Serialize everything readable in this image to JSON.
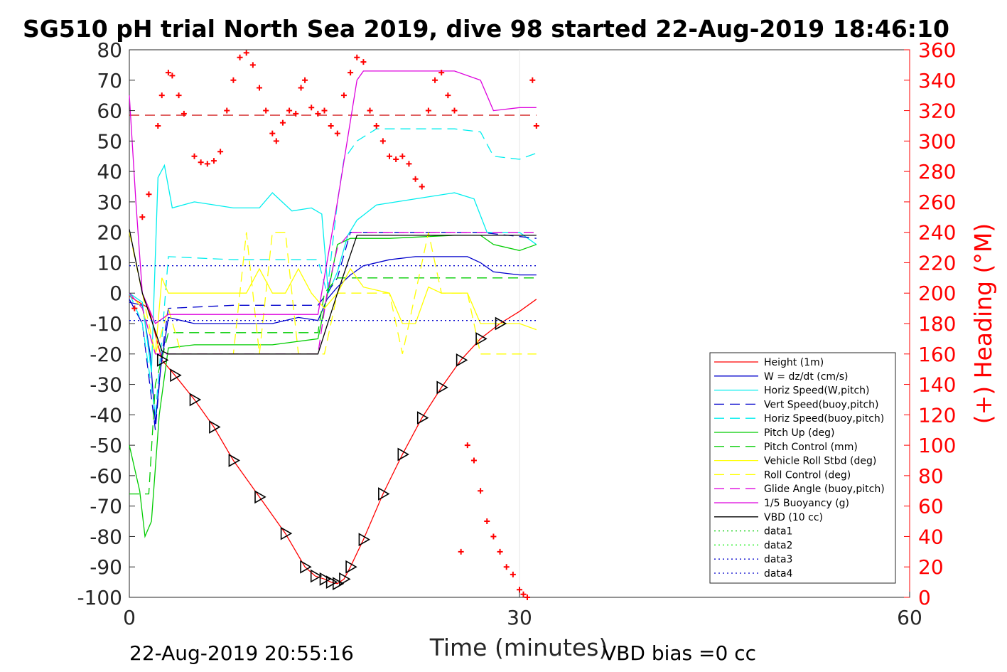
{
  "title": "SG510 pH trial North Sea 2019, dive 98 started 22-Aug-2019 18:46:10",
  "footer": {
    "end_time": "22-Aug-2019 20:55:16",
    "vbd_bias": "VBD bias =0 cc"
  },
  "chart_data": {
    "type": "line",
    "title": "SG510 pH trial North Sea 2019, dive 98 started 22-Aug-2019 18:46:10",
    "xlabel": "Time (minutes)",
    "ylabel": "",
    "y2label": "(+) Heading (°M)",
    "xlim": [
      0,
      60
    ],
    "ylim": [
      -100,
      80
    ],
    "y2lim": [
      0,
      360
    ],
    "xticks": [
      "0",
      "30",
      "60"
    ],
    "yticks": [
      "80",
      "70",
      "60",
      "50",
      "40",
      "30",
      "20",
      "10",
      "0",
      "-10",
      "-20",
      "-30",
      "-40",
      "-50",
      "-60",
      "-70",
      "-80",
      "-90",
      "-100"
    ],
    "y2ticks": [
      "360",
      "340",
      "320",
      "300",
      "280",
      "260",
      "240",
      "220",
      "200",
      "180",
      "160",
      "140",
      "120",
      "100",
      "80",
      "60",
      "40",
      "20",
      "0"
    ],
    "grid": "partial",
    "legend_position": "lower-right",
    "series": [
      {
        "name": "Height (1m)",
        "color": "#ff0000",
        "style": "solid",
        "marker": "triangle",
        "x": [
          0,
          1.5,
          2.5,
          3.5,
          5,
          6.5,
          8,
          10,
          12,
          13.5,
          14.3,
          15,
          15.5,
          16,
          16.5,
          17,
          18,
          19.5,
          21,
          22.5,
          24,
          25.5,
          27,
          28.5,
          30,
          31.3
        ],
        "y": [
          -1,
          -5,
          -22,
          -27,
          -35,
          -44,
          -55,
          -67,
          -79,
          -90,
          -93,
          -94,
          -95,
          -95.5,
          -94,
          -90,
          -81,
          -66,
          -53,
          -41,
          -31,
          -22,
          -15,
          -10,
          -6,
          -2
        ]
      },
      {
        "name": "W = dz/dt (cm/s)",
        "color": "#0000cc",
        "style": "solid",
        "x": [
          0,
          1,
          1.6,
          2,
          2.4,
          3,
          5,
          8,
          11,
          13,
          14.5,
          15.2,
          16,
          17,
          18,
          20,
          22,
          24,
          26,
          27,
          28,
          30,
          31.3
        ],
        "y": [
          -3,
          -4,
          -20,
          -43,
          -25,
          -8,
          -10,
          -10,
          -10,
          -8,
          -9,
          -2,
          2,
          6,
          9,
          11,
          12,
          12,
          12,
          10,
          7,
          6,
          6
        ]
      },
      {
        "name": "Horiz Speed(W,pitch)",
        "color": "#00eeee",
        "style": "solid",
        "x": [
          0,
          1,
          1.7,
          2.2,
          2.7,
          3.3,
          5,
          8,
          10,
          11,
          12.5,
          14,
          14.8,
          15.3,
          16,
          16.8,
          17.5,
          19,
          22,
          25,
          26.5,
          27.5,
          28.5,
          30,
          31.3
        ],
        "y": [
          0,
          -3,
          -26,
          38,
          42,
          28,
          30,
          28,
          28,
          33,
          27,
          28,
          26,
          0,
          7,
          19,
          24,
          29,
          31,
          33,
          31,
          20,
          20,
          20,
          16
        ]
      },
      {
        "name": "Vert Speed(buoy,pitch)",
        "color": "#0000cc",
        "style": "dash",
        "x": [
          0,
          1,
          2,
          2.5,
          3,
          8,
          14.5,
          15.2,
          16,
          17,
          20,
          27,
          31.3
        ],
        "y": [
          -2,
          -10,
          -45,
          -20,
          -5,
          -4,
          -4,
          0,
          5,
          20,
          20,
          20,
          18
        ]
      },
      {
        "name": "Horiz Speed(buoy,pitch)",
        "color": "#00eeee",
        "style": "dash",
        "x": [
          0,
          1,
          2,
          2.5,
          3,
          8,
          14.5,
          15.2,
          16,
          16.5,
          17.5,
          19,
          22,
          25,
          27,
          28,
          30,
          31.3
        ],
        "y": [
          0,
          -10,
          -40,
          -15,
          12,
          11,
          11,
          0,
          30,
          44,
          50,
          54,
          54,
          54,
          53,
          45,
          44,
          46
        ]
      },
      {
        "name": "Pitch Up (deg)",
        "color": "#00cc00",
        "style": "solid",
        "x": [
          0,
          0.8,
          1.2,
          1.7,
          2.3,
          3,
          5,
          8,
          11,
          14.5,
          15,
          15.5,
          16,
          17,
          20,
          25,
          27,
          28,
          30,
          31.3
        ],
        "y": [
          -50,
          -65,
          -80,
          -75,
          -40,
          -18,
          -17,
          -17,
          -17,
          -15,
          -5,
          5,
          16,
          18,
          18,
          19,
          19,
          16,
          14,
          16
        ]
      },
      {
        "name": "Pitch Control (mm)",
        "color": "#00cc00",
        "style": "dash",
        "x": [
          0,
          1.5,
          2,
          3,
          8,
          14.5,
          15,
          16,
          17,
          20,
          25,
          30,
          31.3
        ],
        "y": [
          -66,
          -66,
          -30,
          -13,
          -13,
          -13,
          0,
          5,
          5,
          5,
          5,
          5,
          5
        ]
      },
      {
        "name": "Vehicle Roll Stbd (deg)",
        "color": "#ffff00",
        "style": "solid",
        "x": [
          0,
          1,
          2,
          2.5,
          3,
          5,
          6,
          7,
          8,
          9,
          10,
          11,
          12,
          13,
          14,
          15,
          16,
          17,
          18,
          20,
          21,
          22,
          23,
          24,
          26,
          27,
          28,
          30,
          31.3
        ],
        "y": [
          0,
          -5,
          -20,
          5,
          0,
          0,
          0,
          0,
          0,
          0,
          8,
          0,
          0,
          8,
          0,
          -5,
          0,
          8,
          2,
          0,
          -10,
          -10,
          2,
          0,
          0,
          -10,
          -10,
          -10,
          -12
        ]
      },
      {
        "name": "Roll Control (deg)",
        "color": "#ffff00",
        "style": "dash",
        "x": [
          0,
          1,
          2,
          3,
          4,
          5,
          8,
          9,
          10,
          11,
          12,
          13,
          14,
          15,
          16,
          17,
          18,
          20,
          21,
          23,
          24,
          26,
          27,
          28,
          31.3
        ],
        "y": [
          20,
          0,
          -20,
          -5,
          -20,
          -20,
          -20,
          20,
          -20,
          20,
          20,
          -20,
          -20,
          -20,
          0,
          0,
          0,
          0,
          -20,
          20,
          0,
          0,
          -20,
          -20,
          -20
        ]
      },
      {
        "name": "Glide Angle (buoy,pitch)",
        "color": "#dd00dd",
        "style": "dash",
        "x": [
          0,
          1,
          2,
          3,
          8,
          14.5,
          15.2,
          16,
          17,
          20,
          27,
          31.3
        ],
        "y": [
          0,
          -5,
          -20,
          -20,
          -20,
          -20,
          0,
          15,
          20,
          20,
          20,
          20
        ]
      },
      {
        "name": "1/5 Buoyancy (g)",
        "color": "#dd00dd",
        "style": "solid",
        "x": [
          0,
          0.5,
          1,
          2,
          3,
          5,
          8,
          14.5,
          16,
          17.5,
          18,
          20,
          25,
          27,
          27.5,
          28,
          30,
          31.3
        ],
        "y": [
          65,
          30,
          0,
          -10,
          -7,
          -7,
          -7,
          -7,
          30,
          70,
          73,
          73,
          73,
          70,
          65,
          60,
          61,
          61
        ]
      },
      {
        "name": "VBD (10 cc)",
        "color": "#000000",
        "style": "solid",
        "x": [
          0,
          1,
          2.5,
          3,
          8,
          14.5,
          16,
          17.5,
          20,
          25,
          31.3
        ],
        "y": [
          21,
          0,
          -19,
          -20,
          -20,
          -20,
          0,
          19,
          19,
          19,
          19
        ]
      },
      {
        "name": "data1",
        "color": "#00cc00",
        "style": "dot",
        "x": [],
        "y": []
      },
      {
        "name": "data2",
        "color": "#00ee00",
        "style": "dot",
        "x": [],
        "y": []
      },
      {
        "name": "data3",
        "color": "#0000cc",
        "style": "dot",
        "x": [
          0,
          31.3
        ],
        "y": [
          9,
          9
        ]
      },
      {
        "name": "data4",
        "color": "#0000cc",
        "style": "dot",
        "x": [
          0,
          31.3
        ],
        "y": [
          -9,
          -9
        ]
      }
    ],
    "reference_lines": [
      {
        "color": "#cc0000",
        "style": "dash",
        "y2": 317
      }
    ],
    "heading": {
      "axis": "y2",
      "color": "#ff0000",
      "marker": "+",
      "x": [
        0.4,
        1,
        1.5,
        2.2,
        2.5,
        3,
        3.3,
        3.8,
        4.2,
        5,
        5.5,
        6,
        6.5,
        7,
        7.5,
        8,
        8.5,
        9,
        9.5,
        10,
        10.5,
        11,
        11.3,
        11.8,
        12.3,
        12.8,
        13.2,
        13.5,
        14,
        14.5,
        15,
        15.5,
        16,
        16.5,
        17,
        17.5,
        18,
        18.5,
        19,
        19.5,
        20,
        20.5,
        21,
        21.5,
        22,
        22.5,
        23,
        23.5,
        24,
        24.5,
        25,
        25.5,
        26,
        26.5,
        27,
        27.5,
        28,
        28.5,
        29,
        29.5,
        30,
        30.3,
        30.6,
        31,
        31.3
      ],
      "y": [
        190,
        250,
        265,
        310,
        330,
        345,
        343,
        330,
        318,
        290,
        286,
        285,
        287,
        293,
        320,
        340,
        355,
        358,
        350,
        335,
        320,
        305,
        300,
        312,
        320,
        318,
        335,
        340,
        322,
        318,
        320,
        310,
        305,
        330,
        345,
        355,
        352,
        320,
        310,
        300,
        290,
        288,
        290,
        285,
        275,
        270,
        320,
        340,
        345,
        330,
        320,
        30,
        100,
        90,
        70,
        50,
        40,
        30,
        20,
        15,
        5,
        2,
        0,
        340,
        310
      ]
    }
  }
}
